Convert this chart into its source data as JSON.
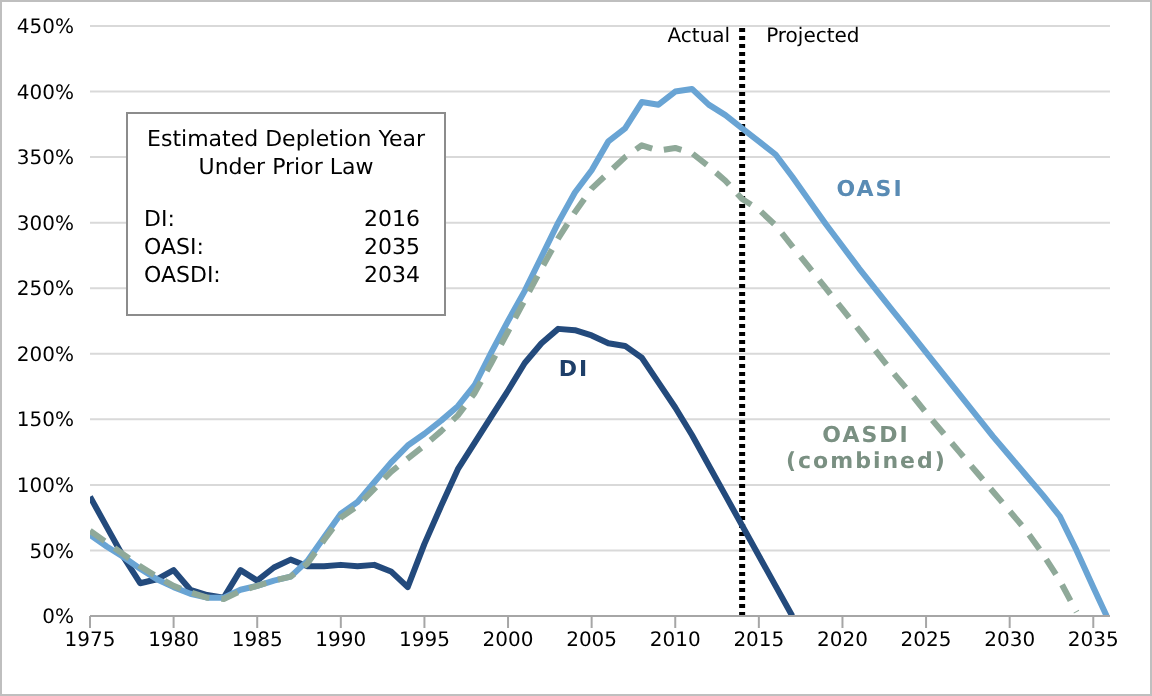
{
  "chart_data": {
    "type": "line",
    "xlim": [
      1975,
      2036
    ],
    "xticks": [
      1975,
      1980,
      1985,
      1990,
      1995,
      2000,
      2005,
      2010,
      2015,
      2020,
      2025,
      2030,
      2035
    ],
    "ylim": [
      0,
      450
    ],
    "yticks": [
      {
        "value": 0,
        "label": "0%"
      },
      {
        "value": 50,
        "label": "50%"
      },
      {
        "value": 100,
        "label": "100%"
      },
      {
        "value": 150,
        "label": "150%"
      },
      {
        "value": 200,
        "label": "200%"
      },
      {
        "value": 250,
        "label": "250%"
      },
      {
        "value": 300,
        "label": "300%"
      },
      {
        "value": 350,
        "label": "350%"
      },
      {
        "value": 400,
        "label": "400%"
      },
      {
        "value": 450,
        "label": "450%"
      }
    ],
    "grid": "y",
    "marker": "none",
    "series": [
      {
        "name": "DI",
        "color": "#234a7c",
        "line_style": "solid",
        "x": [
          1975,
          1976,
          1977,
          1978,
          1979,
          1980,
          1981,
          1982,
          1983,
          1984,
          1985,
          1986,
          1987,
          1988,
          1989,
          1990,
          1991,
          1992,
          1993,
          1994,
          1995,
          1996,
          1997,
          1998,
          1999,
          2000,
          2001,
          2002,
          2003,
          2004,
          2005,
          2006,
          2007,
          2008,
          2009,
          2010,
          2011,
          2012,
          2013,
          2014,
          2015,
          2016,
          2017
        ],
        "values": [
          91,
          68,
          45,
          25,
          28,
          35,
          20,
          16,
          14,
          35,
          27,
          37,
          43,
          38,
          38,
          39,
          38,
          39,
          34,
          22,
          55,
          84,
          112,
          132,
          152,
          172,
          193,
          208,
          219,
          218,
          214,
          208,
          206,
          197,
          178,
          159,
          138,
          115,
          92,
          69,
          46,
          23,
          0
        ]
      },
      {
        "name": "OASI",
        "color": "#69a4d4",
        "line_style": "solid",
        "x": [
          1975,
          1976,
          1977,
          1978,
          1979,
          1980,
          1981,
          1982,
          1983,
          1984,
          1985,
          1986,
          1987,
          1988,
          1989,
          1990,
          1991,
          1992,
          1993,
          1994,
          1995,
          1996,
          1997,
          1998,
          1999,
          2000,
          2001,
          2002,
          2003,
          2004,
          2005,
          2006,
          2007,
          2008,
          2009,
          2010,
          2011,
          2012,
          2013,
          2014,
          2015,
          2016,
          2017,
          2018,
          2019,
          2020,
          2021,
          2022,
          2023,
          2024,
          2025,
          2026,
          2027,
          2028,
          2029,
          2030,
          2031,
          2032,
          2033,
          2034,
          2035,
          2035.8
        ],
        "values": [
          62,
          53,
          45,
          36,
          28,
          22,
          17,
          14,
          14,
          20,
          23,
          27,
          30,
          42,
          60,
          78,
          87,
          102,
          117,
          130,
          139,
          149,
          160,
          176,
          201,
          225,
          248,
          274,
          300,
          323,
          340,
          362,
          372,
          392,
          390,
          400,
          402,
          390,
          382,
          372,
          362,
          352,
          335,
          317,
          299,
          282,
          265,
          249,
          233,
          217,
          201,
          185,
          169,
          153,
          137,
          122,
          107,
          92,
          76,
          50,
          22,
          0
        ]
      },
      {
        "name": "OASDI (combined)",
        "color": "#8fa999",
        "line_style": "dashed",
        "x": [
          1975,
          1976,
          1977,
          1978,
          1979,
          1980,
          1981,
          1982,
          1983,
          1984,
          1985,
          1986,
          1987,
          1988,
          1989,
          1990,
          1991,
          1992,
          1993,
          1994,
          1995,
          1996,
          1997,
          1998,
          1999,
          2000,
          2001,
          2002,
          2003,
          2004,
          2005,
          2006,
          2007,
          2008,
          2009,
          2010,
          2011,
          2012,
          2013,
          2014,
          2015,
          2016,
          2017,
          2018,
          2019,
          2020,
          2021,
          2022,
          2023,
          2024,
          2025,
          2026,
          2027,
          2028,
          2029,
          2030,
          2031,
          2032,
          2033,
          2034
        ],
        "values": [
          65,
          56,
          47,
          38,
          30,
          23,
          18,
          14,
          13,
          19,
          23,
          27,
          30,
          40,
          58,
          75,
          84,
          97,
          110,
          120,
          130,
          141,
          153,
          170,
          193,
          217,
          241,
          265,
          288,
          308,
          326,
          338,
          350,
          359,
          355,
          357,
          353,
          343,
          332,
          318,
          310,
          298,
          282,
          266,
          250,
          234,
          218,
          202,
          186,
          171,
          155,
          140,
          125,
          110,
          95,
          80,
          65,
          47,
          27,
          3
        ]
      }
    ],
    "ref_lines": [
      {
        "axis": "x",
        "value": 2014,
        "color": "#000000",
        "line_style": "dotted"
      }
    ],
    "annotations": [
      "Actual",
      "Projected",
      "Estimated Depletion Year Under Prior Law",
      "DI: 2016",
      "OASI: 2035",
      "OASDI: 2034"
    ]
  }
}
